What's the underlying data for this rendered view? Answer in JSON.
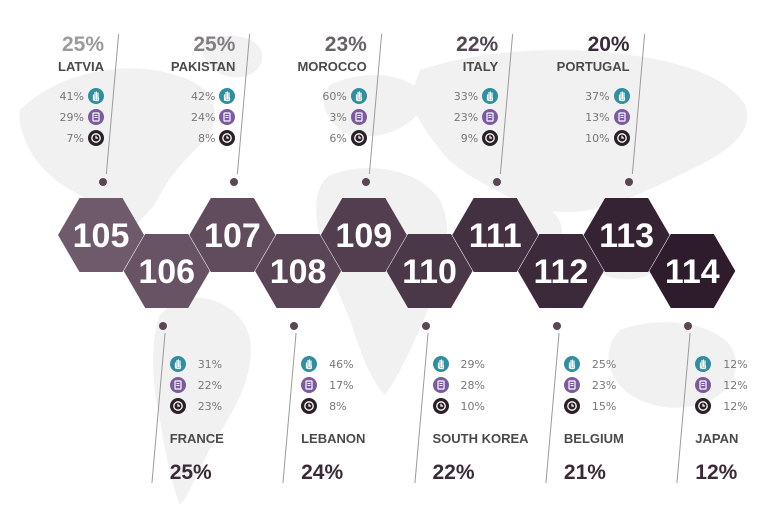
{
  "colors": {
    "hand": "#2f8ea0",
    "doc": "#7b5a9e",
    "clock": "#2b2027",
    "hex_start": "#6e5a6a",
    "hex_end": "#2e1b2c",
    "top_pct_start": "#9a9a9a",
    "top_pct_end": "#3a2a37"
  },
  "icons": [
    "hand-icon",
    "document-icon",
    "clock-icon"
  ],
  "top": [
    {
      "number": "105",
      "country": "LATVIA",
      "percent": "25%",
      "stats": [
        "41%",
        "29%",
        "7%"
      ]
    },
    {
      "number": "107",
      "country": "PAKISTAN",
      "percent": "25%",
      "stats": [
        "42%",
        "24%",
        "8%"
      ]
    },
    {
      "number": "109",
      "country": "MOROCCO",
      "percent": "23%",
      "stats": [
        "60%",
        "3%",
        "6%"
      ]
    },
    {
      "number": "111",
      "country": "ITALY",
      "percent": "22%",
      "stats": [
        "33%",
        "23%",
        "9%"
      ]
    },
    {
      "number": "113",
      "country": "PORTUGAL",
      "percent": "20%",
      "stats": [
        "37%",
        "13%",
        "10%"
      ]
    }
  ],
  "bottom": [
    {
      "number": "106",
      "country": "FRANCE",
      "percent": "25%",
      "stats": [
        "31%",
        "22%",
        "23%"
      ]
    },
    {
      "number": "108",
      "country": "LEBANON",
      "percent": "24%",
      "stats": [
        "46%",
        "17%",
        "8%"
      ]
    },
    {
      "number": "110",
      "country": "SOUTH KOREA",
      "percent": "22%",
      "stats": [
        "29%",
        "28%",
        "10%"
      ]
    },
    {
      "number": "112",
      "country": "BELGIUM",
      "percent": "21%",
      "stats": [
        "25%",
        "23%",
        "15%"
      ]
    },
    {
      "number": "114",
      "country": "JAPAN",
      "percent": "12%",
      "stats": [
        "12%",
        "12%",
        "12%"
      ]
    }
  ]
}
